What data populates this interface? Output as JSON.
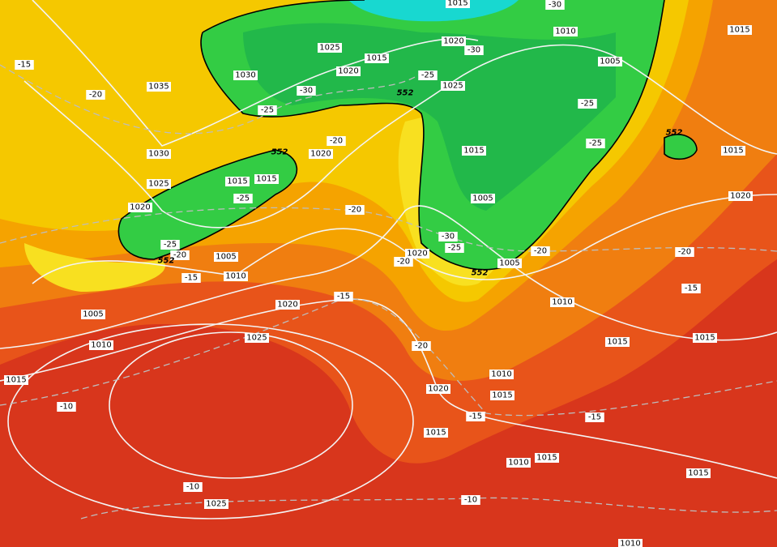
{
  "map": {
    "labels": [
      "1015",
      "-30",
      "1010",
      "1015",
      "-15",
      "1025",
      "1015",
      "1020",
      "-30",
      "1005",
      "1030",
      "1020",
      "-25",
      "1035",
      "-20",
      "-30",
      "1025",
      "-25",
      "-25",
      "552",
      "552",
      "-20",
      "552",
      "1020",
      "-25",
      "1030",
      "1015",
      "1015",
      "1015",
      "1015",
      "1025",
      "-25",
      "1005",
      "1020",
      "1020",
      "-20",
      "-25",
      "-30",
      "-25",
      "-20",
      "552",
      "1005",
      "1020",
      "-20",
      "-20",
      "-20",
      "552",
      "1005",
      "-15",
      "1010",
      "-15",
      "-15",
      "1020",
      "1010",
      "1005",
      "1015",
      "1015",
      "1010",
      "1025",
      "-20",
      "1010",
      "1015",
      "1020",
      "1015",
      "-10",
      "-15",
      "-15",
      "1015",
      "1010",
      "1015",
      "1015",
      "-10",
      "-10",
      "1025",
      "1010"
    ]
  }
}
